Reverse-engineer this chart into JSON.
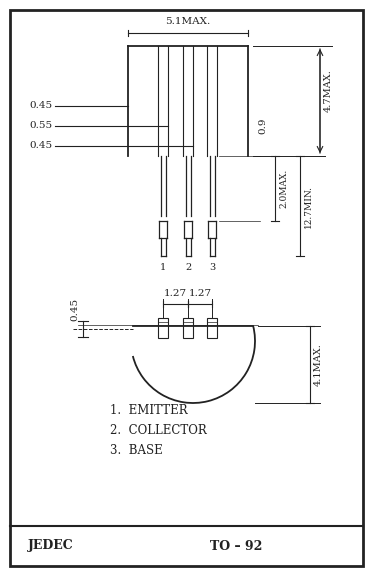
{
  "bg_color": "#ffffff",
  "line_color": "#222222",
  "title": "TO – 92",
  "jedec": "JEDEC",
  "labels": [
    "1.  EMITTER",
    "2.  COLLECTOR",
    "3.  BASE"
  ],
  "dim_51": "5.1MAX.",
  "dim_47": "4.7MAX.",
  "dim_127a": "1.27",
  "dim_127b": "1.27",
  "dim_09": "0.9",
  "dim_20": "2.0MAX.",
  "dim_127min": "12.7MIN.",
  "dim_41": "4.1MAX.",
  "dim_045a": "0.45",
  "dim_055": "0.55",
  "dim_045b": "0.45",
  "dim_045c": "0.45",
  "pin_labels": [
    "1",
    "2",
    "3"
  ]
}
